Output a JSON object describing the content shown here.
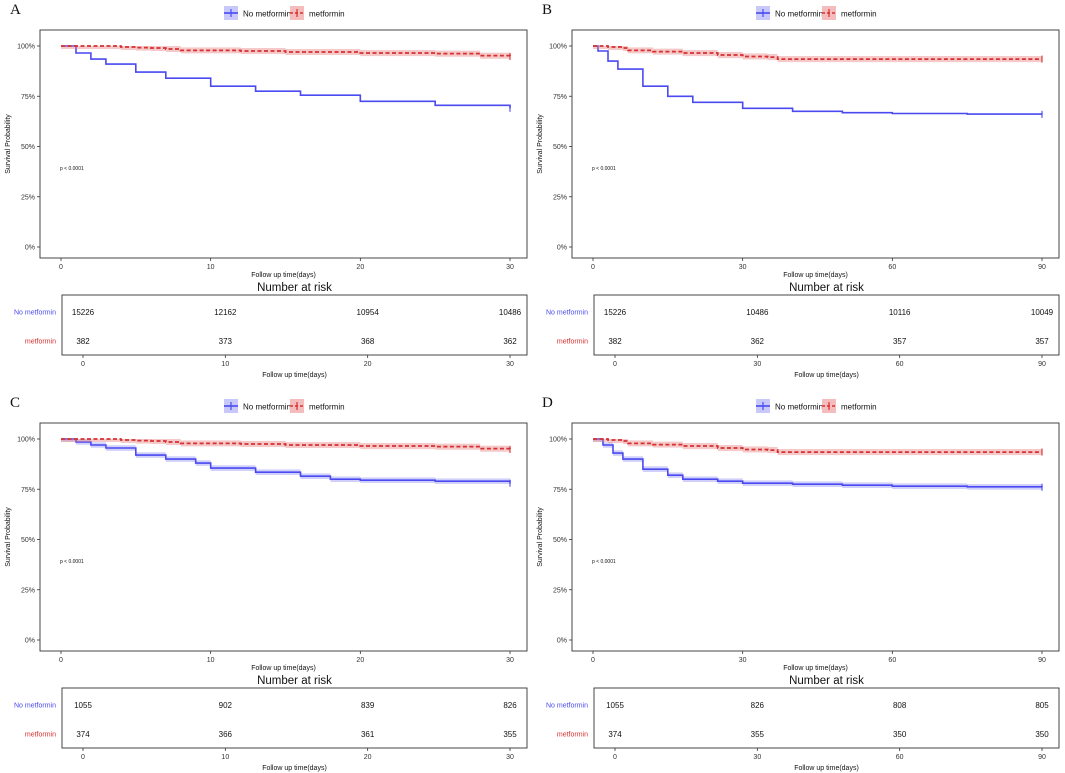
{
  "chart_data": [
    {
      "panel": "A",
      "type": "line",
      "subtype": "kaplan-meier",
      "legend": [
        {
          "name": "No metformin",
          "color": "#4a4af0",
          "style": "solid"
        },
        {
          "name": "metformin",
          "color": "#d63030",
          "style": "dashed"
        }
      ],
      "ylabel": "Survival Probability",
      "xlabel": "Follow up time(days)",
      "xlim": [
        0,
        30
      ],
      "ylim": [
        0,
        1
      ],
      "xticks": [
        0,
        10,
        20,
        30
      ],
      "yticks": [
        {
          "value": 0,
          "label": "0%"
        },
        {
          "value": 0.25,
          "label": "25%"
        },
        {
          "value": 0.5,
          "label": "50%"
        },
        {
          "value": 0.75,
          "label": "75%"
        },
        {
          "value": 1,
          "label": "100%"
        }
      ],
      "pvalue": "p < 0.0001",
      "series": [
        {
          "name": "No metformin",
          "x": [
            0,
            1,
            2,
            3,
            5,
            7,
            10,
            13,
            16,
            20,
            25,
            30
          ],
          "y": [
            1.0,
            0.965,
            0.935,
            0.91,
            0.87,
            0.84,
            0.8,
            0.775,
            0.755,
            0.725,
            0.705,
            0.69
          ],
          "band": 0.003
        },
        {
          "name": "metformin",
          "x": [
            0,
            4,
            5,
            6,
            7,
            8,
            12,
            15,
            20,
            25,
            28,
            30
          ],
          "y": [
            1.0,
            0.995,
            0.992,
            0.99,
            0.985,
            0.978,
            0.975,
            0.97,
            0.965,
            0.962,
            0.952,
            0.948
          ],
          "band": 0.015
        }
      ],
      "risk_table": {
        "title": "Number at risk",
        "xlabel": "Follow up time(days)",
        "rows": [
          {
            "name": "No metformin",
            "color": "#4a4af0",
            "values": [
              "15226",
              "12162",
              "10954",
              "10486"
            ]
          },
          {
            "name": "metformin",
            "color": "#d63030",
            "values": [
              "382",
              "373",
              "368",
              "362"
            ]
          }
        ]
      }
    },
    {
      "panel": "B",
      "type": "line",
      "subtype": "kaplan-meier",
      "legend": [
        {
          "name": "No metformin",
          "color": "#4a4af0",
          "style": "solid"
        },
        {
          "name": "metformin",
          "color": "#d63030",
          "style": "dashed"
        }
      ],
      "ylabel": "Survival Probability",
      "xlabel": "Follow up time(days)",
      "xlim": [
        0,
        90
      ],
      "ylim": [
        0,
        1
      ],
      "xticks": [
        0,
        30,
        60,
        90
      ],
      "yticks": [
        {
          "value": 0,
          "label": "0%"
        },
        {
          "value": 0.25,
          "label": "25%"
        },
        {
          "value": 0.5,
          "label": "50%"
        },
        {
          "value": 0.75,
          "label": "75%"
        },
        {
          "value": 1,
          "label": "100%"
        }
      ],
      "pvalue": "p < 0.0001",
      "series": [
        {
          "name": "No metformin",
          "x": [
            0,
            1,
            3,
            5,
            10,
            15,
            20,
            30,
            40,
            50,
            60,
            75,
            90
          ],
          "y": [
            1.0,
            0.975,
            0.925,
            0.885,
            0.8,
            0.75,
            0.72,
            0.69,
            0.675,
            0.668,
            0.664,
            0.661,
            0.66
          ],
          "band": 0.003
        },
        {
          "name": "metformin",
          "x": [
            0,
            3,
            6,
            7,
            12,
            18,
            25,
            30,
            35,
            37,
            45,
            60,
            75,
            90
          ],
          "y": [
            1.0,
            0.995,
            0.99,
            0.978,
            0.972,
            0.965,
            0.955,
            0.948,
            0.945,
            0.935,
            0.935,
            0.935,
            0.935,
            0.935
          ],
          "band": 0.015
        }
      ],
      "risk_table": {
        "title": "Number at risk",
        "xlabel": "Follow up time(days)",
        "rows": [
          {
            "name": "No metformin",
            "color": "#4a4af0",
            "values": [
              "15226",
              "10486",
              "10116",
              "10049"
            ]
          },
          {
            "name": "metformin",
            "color": "#d63030",
            "values": [
              "382",
              "362",
              "357",
              "357"
            ]
          }
        ]
      }
    },
    {
      "panel": "C",
      "type": "line",
      "subtype": "kaplan-meier",
      "legend": [
        {
          "name": "No metformin",
          "color": "#4a4af0",
          "style": "solid"
        },
        {
          "name": "metformin",
          "color": "#d63030",
          "style": "dashed"
        }
      ],
      "ylabel": "Survival Probability",
      "xlabel": "Follow up time(days)",
      "xlim": [
        0,
        30
      ],
      "ylim": [
        0,
        1
      ],
      "xticks": [
        0,
        10,
        20,
        30
      ],
      "yticks": [
        {
          "value": 0,
          "label": "0%"
        },
        {
          "value": 0.25,
          "label": "25%"
        },
        {
          "value": 0.5,
          "label": "50%"
        },
        {
          "value": 0.75,
          "label": "75%"
        },
        {
          "value": 1,
          "label": "100%"
        }
      ],
      "pvalue": "p < 0.0001",
      "series": [
        {
          "name": "No metformin",
          "x": [
            0,
            1,
            2,
            3,
            5,
            7,
            9,
            10,
            13,
            16,
            18,
            20,
            25,
            30
          ],
          "y": [
            1.0,
            0.985,
            0.97,
            0.955,
            0.92,
            0.9,
            0.88,
            0.855,
            0.835,
            0.815,
            0.8,
            0.795,
            0.79,
            0.78
          ],
          "band": 0.014
        },
        {
          "name": "metformin",
          "x": [
            0,
            4,
            5,
            6,
            7,
            8,
            12,
            15,
            20,
            25,
            28,
            30
          ],
          "y": [
            1.0,
            0.995,
            0.992,
            0.99,
            0.985,
            0.978,
            0.975,
            0.97,
            0.965,
            0.962,
            0.952,
            0.948
          ],
          "band": 0.015
        }
      ],
      "risk_table": {
        "title": "Number at risk",
        "xlabel": "Follow up time(days)",
        "rows": [
          {
            "name": "No metformin",
            "color": "#4a4af0",
            "values": [
              "1055",
              "902",
              "839",
              "826"
            ]
          },
          {
            "name": "metformin",
            "color": "#d63030",
            "values": [
              "374",
              "366",
              "361",
              "355"
            ]
          }
        ]
      }
    },
    {
      "panel": "D",
      "type": "line",
      "subtype": "kaplan-meier",
      "legend": [
        {
          "name": "No metformin",
          "color": "#4a4af0",
          "style": "solid"
        },
        {
          "name": "metformin",
          "color": "#d63030",
          "style": "dashed"
        }
      ],
      "ylabel": "Survival Probability",
      "xlabel": "Follow up time(days)",
      "xlim": [
        0,
        90
      ],
      "ylim": [
        0,
        1
      ],
      "xticks": [
        0,
        30,
        60,
        90
      ],
      "yticks": [
        {
          "value": 0,
          "label": "0%"
        },
        {
          "value": 0.25,
          "label": "25%"
        },
        {
          "value": 0.5,
          "label": "50%"
        },
        {
          "value": 0.75,
          "label": "75%"
        },
        {
          "value": 1,
          "label": "100%"
        }
      ],
      "pvalue": "p < 0.0001",
      "series": [
        {
          "name": "No metformin",
          "x": [
            0,
            2,
            4,
            6,
            10,
            15,
            18,
            25,
            30,
            40,
            50,
            60,
            75,
            90
          ],
          "y": [
            1.0,
            0.97,
            0.93,
            0.9,
            0.85,
            0.82,
            0.8,
            0.79,
            0.78,
            0.775,
            0.77,
            0.765,
            0.762,
            0.76
          ],
          "band": 0.014
        },
        {
          "name": "metformin",
          "x": [
            0,
            3,
            6,
            7,
            12,
            18,
            25,
            30,
            35,
            37,
            45,
            60,
            75,
            90
          ],
          "y": [
            1.0,
            0.995,
            0.99,
            0.978,
            0.972,
            0.965,
            0.955,
            0.948,
            0.945,
            0.935,
            0.935,
            0.935,
            0.935,
            0.935
          ],
          "band": 0.015
        }
      ],
      "risk_table": {
        "title": "Number at risk",
        "xlabel": "Follow up time(days)",
        "rows": [
          {
            "name": "No metformin",
            "color": "#4a4af0",
            "values": [
              "1055",
              "826",
              "808",
              "805"
            ]
          },
          {
            "name": "metformin",
            "color": "#d63030",
            "values": [
              "374",
              "355",
              "350",
              "350"
            ]
          }
        ]
      }
    }
  ]
}
